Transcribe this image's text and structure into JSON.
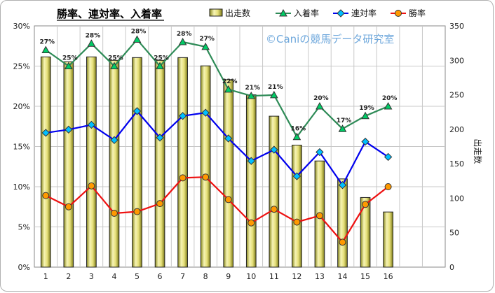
{
  "chart_data": {
    "type": "bar+line",
    "title": "勝率、連対率、入着率",
    "watermark": "©Caniの競馬データ研究室",
    "categories": [
      "1",
      "2",
      "3",
      "4",
      "5",
      "6",
      "7",
      "8",
      "9",
      "10",
      "11",
      "12",
      "13",
      "14",
      "15",
      "16"
    ],
    "bar_series": {
      "name": "出走数",
      "axis": "right",
      "values": [
        305,
        298,
        305,
        300,
        304,
        300,
        304,
        292,
        272,
        250,
        219,
        177,
        154,
        128,
        101,
        80
      ]
    },
    "line_series": [
      {
        "name": "入着率",
        "axis": "left",
        "color": "#2e8b57",
        "marker": "triangle",
        "marker_color": "#00cc66",
        "values": [
          27.0,
          25.0,
          27.8,
          25.0,
          28.3,
          25.0,
          28.0,
          27.4,
          22.1,
          21.3,
          21.4,
          16.2,
          20.0,
          17.2,
          18.8,
          20.0
        ],
        "labels": [
          "27%",
          "25%",
          "28%",
          "25%",
          "28%",
          "25%",
          "28%",
          "27%",
          "22%",
          "21%",
          "21%",
          "16%",
          "20%",
          "17%",
          "19%",
          "20%"
        ]
      },
      {
        "name": "連対率",
        "axis": "left",
        "color": "#0000ee",
        "marker": "diamond",
        "marker_color": "#00bfff",
        "values": [
          16.7,
          17.1,
          17.7,
          15.8,
          19.4,
          16.1,
          18.8,
          19.2,
          16.0,
          13.2,
          14.6,
          11.3,
          14.3,
          10.2,
          15.6,
          13.7
        ]
      },
      {
        "name": "勝率",
        "axis": "left",
        "color": "#ee1111",
        "marker": "circle",
        "marker_color": "#ff9900",
        "values": [
          8.9,
          7.5,
          10.1,
          6.7,
          6.9,
          7.9,
          11.1,
          11.2,
          8.4,
          5.5,
          7.2,
          5.6,
          6.4,
          3.1,
          7.8,
          10.0
        ]
      }
    ],
    "y_left": {
      "min": 0,
      "max": 30,
      "step": 5,
      "tick_suffix": "%"
    },
    "y_right": {
      "min": 0,
      "max": 350,
      "step": 50,
      "title": "出走数"
    },
    "grid": true,
    "legend_position": "top"
  }
}
